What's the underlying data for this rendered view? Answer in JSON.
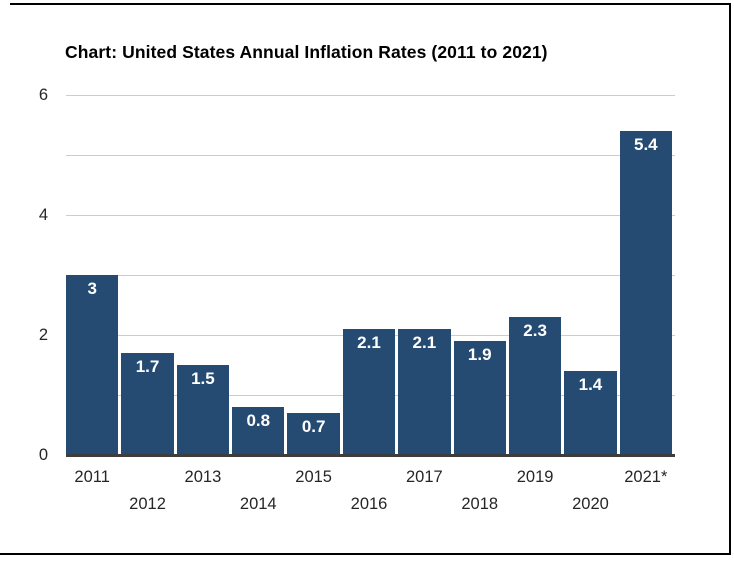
{
  "page": {
    "background": "#ffffff",
    "frame_color": "#000000"
  },
  "chart_data": {
    "type": "bar",
    "title": "Chart: United States Annual Inflation Rates (2011 to 2021)",
    "categories": [
      "2011",
      "2012",
      "2013",
      "2014",
      "2015",
      "2016",
      "2017",
      "2018",
      "2019",
      "2020",
      "2021*"
    ],
    "values": [
      3,
      1.7,
      1.5,
      0.8,
      0.7,
      2.1,
      2.1,
      1.9,
      2.3,
      1.4,
      5.4
    ],
    "bar_value_labels": [
      "3",
      "1.7",
      "1.5",
      "0.8",
      "0.7",
      "2.1",
      "2.1",
      "1.9",
      "2.3",
      "1.4",
      "5.4"
    ],
    "xlabel": "",
    "ylabel": "",
    "ylim": [
      0,
      6
    ],
    "gridline_values": [
      1,
      2,
      3,
      4,
      5,
      6
    ],
    "ytick_labeled_values": [
      0,
      2,
      4,
      6
    ],
    "ytick_labels": [
      "0",
      "2",
      "4",
      "6"
    ],
    "grid": true,
    "legend": false,
    "x_labels_staggered": true,
    "colors": {
      "bar": "#254b73",
      "bar_value_label": "#ffffff",
      "gridline": "#cccccc",
      "axis_line": "#3d3d3d",
      "tick_text": "#262626",
      "title_text": "#000000"
    }
  }
}
